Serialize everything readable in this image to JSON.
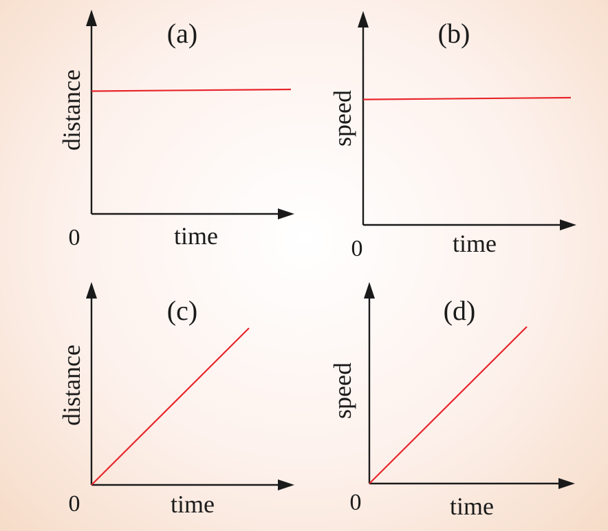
{
  "chart_data": [
    {
      "type": "line",
      "panel_label": "(a)",
      "xlabel": "time",
      "ylabel": "distance",
      "origin_label": "0",
      "xlim": [
        0,
        1
      ],
      "ylim": [
        0,
        1
      ],
      "series": [
        {
          "x": [
            0,
            1
          ],
          "y": [
            0.7,
            0.71
          ],
          "color": "#e8252b"
        }
      ]
    },
    {
      "type": "line",
      "panel_label": "(b)",
      "xlabel": "time",
      "ylabel": "speed",
      "origin_label": "0",
      "xlim": [
        0,
        1
      ],
      "ylim": [
        0,
        1
      ],
      "series": [
        {
          "x": [
            0,
            1
          ],
          "y": [
            0.71,
            0.72
          ],
          "color": "#e8252b"
        }
      ]
    },
    {
      "type": "line",
      "panel_label": "(c)",
      "xlabel": "time",
      "ylabel": "distance",
      "origin_label": "0",
      "xlim": [
        0,
        1
      ],
      "ylim": [
        0,
        1
      ],
      "series": [
        {
          "x": [
            0,
            1
          ],
          "y": [
            0,
            1
          ],
          "color": "#e8252b"
        }
      ]
    },
    {
      "type": "line",
      "panel_label": "(d)",
      "xlabel": "time",
      "ylabel": "speed",
      "origin_label": "0",
      "xlim": [
        0,
        1
      ],
      "ylim": [
        0,
        1
      ],
      "series": [
        {
          "x": [
            0,
            1
          ],
          "y": [
            0,
            1
          ],
          "color": "#e8252b"
        }
      ]
    }
  ]
}
